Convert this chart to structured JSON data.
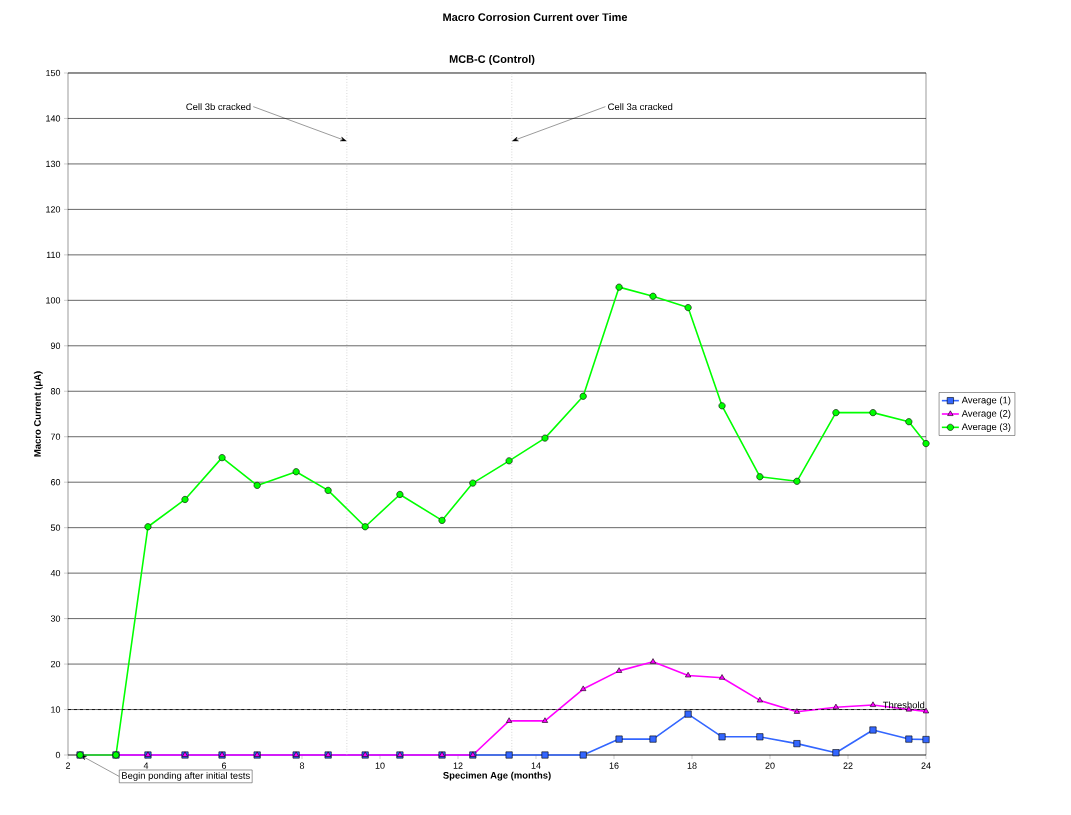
{
  "chart_data": {
    "type": "line",
    "title": "Macro Corrosion Current over Time",
    "subtitle": "MCB-C (Control)",
    "xlabel": "Specimen Age (months)",
    "ylabel": "Macro Current (μA)",
    "x": [
      2.31,
      3.23,
      4.05,
      5.0,
      5.95,
      6.85,
      7.85,
      8.67,
      9.62,
      10.51,
      11.59,
      12.38,
      13.31,
      14.23,
      15.21,
      16.13,
      17.0,
      17.9,
      18.77,
      19.74,
      20.69,
      21.69,
      22.64,
      23.56,
      24
    ],
    "series": [
      {
        "name": "Average (1)",
        "color": "#3366ff",
        "marker": "square",
        "values": [
          0,
          0,
          0,
          0,
          0,
          0,
          0,
          0,
          0,
          0,
          0,
          0,
          0,
          0,
          0,
          3.5,
          3.5,
          9,
          4,
          4,
          2.5,
          0.5,
          5.5,
          3.5,
          3.4
        ]
      },
      {
        "name": "Average (2)",
        "color": "#ff00ff",
        "marker": "triangle",
        "values": [
          0,
          0,
          0,
          0,
          0,
          0,
          0,
          0,
          0,
          0,
          0,
          0,
          7.5,
          7.5,
          14.5,
          18.5,
          20.5,
          17.5,
          17,
          12,
          9.5,
          10.5,
          11,
          10,
          9.6
        ]
      },
      {
        "name": "Average (3)",
        "color": "#00ff00",
        "marker": "circle",
        "values": [
          0,
          0,
          50.2,
          56.2,
          65.4,
          59.3,
          62.3,
          58.2,
          50.2,
          57.3,
          51.6,
          59.8,
          64.7,
          69.7,
          78.9,
          102.9,
          100.9,
          98.4,
          76.8,
          61.2,
          60.2,
          75.3,
          75.3,
          73.3,
          68.5
        ]
      }
    ],
    "xlim": [
      2,
      24
    ],
    "ylim": [
      0,
      150
    ],
    "xticks": [
      2,
      4,
      6,
      8,
      10,
      12,
      14,
      16,
      18,
      20,
      22,
      24
    ],
    "yticks": [
      0,
      10,
      20,
      30,
      40,
      50,
      60,
      70,
      80,
      90,
      100,
      110,
      120,
      130,
      140,
      150
    ],
    "grid": "y",
    "legend": "right",
    "line_style": "solid",
    "ref_lines": [
      {
        "axis": "y",
        "value": 10,
        "label": "Threshold",
        "color": "#000000",
        "line_style": "dashed"
      },
      {
        "axis": "x",
        "value": 9.15,
        "color": "#c0c0c0",
        "line_style": "dotted"
      },
      {
        "axis": "x",
        "value": 13.38,
        "color": "#c0c0c0",
        "line_style": "dotted"
      }
    ],
    "annotations": [
      {
        "text": "Cell 3b cracked",
        "x": 9.15,
        "y": 135
      },
      {
        "text": "Cell 3a cracked",
        "x": 13.38,
        "y": 135
      },
      {
        "text": "Begin ponding after initial tests",
        "x": 2.31,
        "y": 0
      }
    ]
  }
}
